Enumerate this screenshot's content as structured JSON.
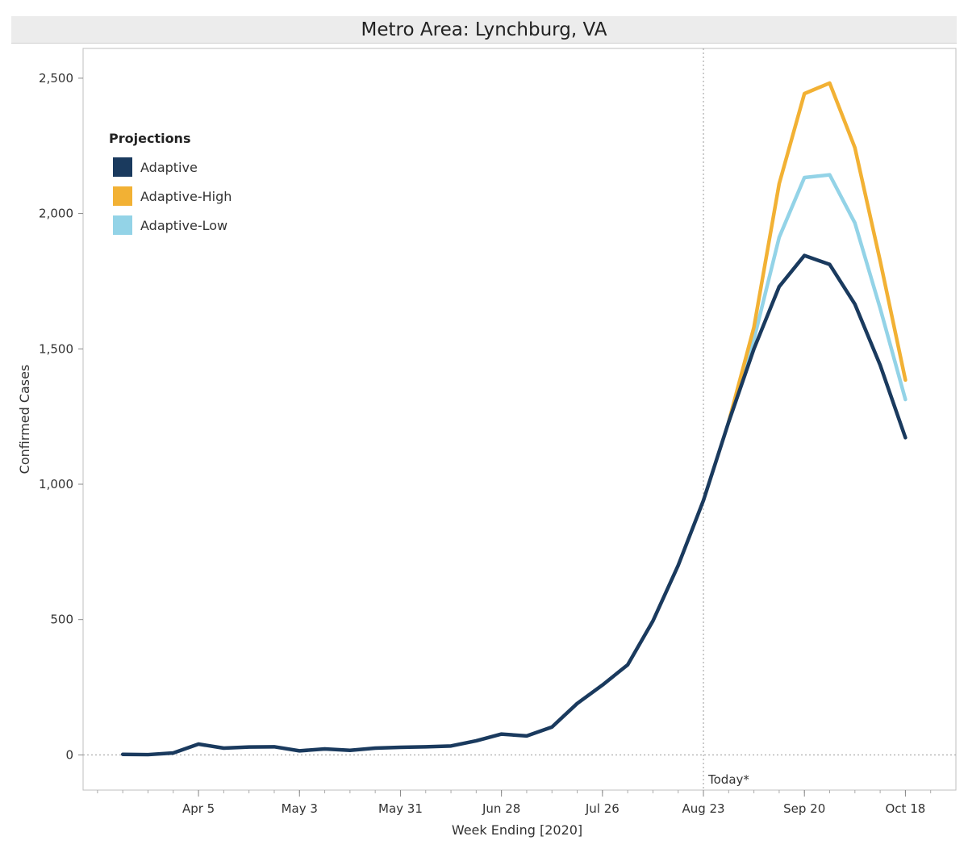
{
  "title": "Metro Area: Lynchburg, VA",
  "chart_data": {
    "type": "line",
    "title": "Metro Area: Lynchburg, VA",
    "xlabel": "Week Ending [2020]",
    "ylabel": "Confirmed Cases",
    "ylim": [
      -130,
      2610
    ],
    "xlim": [
      "2020-03-04",
      "2020-11-01"
    ],
    "x_ticks": [
      {
        "date": "2020-04-05",
        "label": "Apr 5"
      },
      {
        "date": "2020-05-03",
        "label": "May 3"
      },
      {
        "date": "2020-05-31",
        "label": "May 31"
      },
      {
        "date": "2020-06-28",
        "label": "Jun 28"
      },
      {
        "date": "2020-07-26",
        "label": "Jul 26"
      },
      {
        "date": "2020-08-23",
        "label": "Aug 23"
      },
      {
        "date": "2020-09-20",
        "label": "Sep 20"
      },
      {
        "date": "2020-10-18",
        "label": "Oct 18"
      }
    ],
    "y_ticks": [
      0,
      500,
      1000,
      1500,
      2000,
      2500
    ],
    "y_tick_labels": [
      "0",
      "500",
      "1,000",
      "1,500",
      "2,000",
      "2,500"
    ],
    "today_marker": {
      "date": "2020-08-23",
      "label": "Today*"
    },
    "zero_line": true,
    "legend": {
      "title": "Projections",
      "position": "top-left"
    },
    "series": [
      {
        "name": "Adaptive",
        "color": "#1a3a5e",
        "points": [
          [
            "2020-03-15",
            2
          ],
          [
            "2020-03-22",
            1
          ],
          [
            "2020-03-29",
            7
          ],
          [
            "2020-04-05",
            40
          ],
          [
            "2020-04-12",
            25
          ],
          [
            "2020-04-19",
            29
          ],
          [
            "2020-04-26",
            30
          ],
          [
            "2020-05-03",
            15
          ],
          [
            "2020-05-10",
            22
          ],
          [
            "2020-05-17",
            17
          ],
          [
            "2020-05-24",
            25
          ],
          [
            "2020-05-31",
            28
          ],
          [
            "2020-06-07",
            30
          ],
          [
            "2020-06-14",
            33
          ],
          [
            "2020-06-21",
            52
          ],
          [
            "2020-06-28",
            77
          ],
          [
            "2020-07-05",
            70
          ],
          [
            "2020-07-12",
            103
          ],
          [
            "2020-07-19",
            190
          ],
          [
            "2020-07-26",
            258
          ],
          [
            "2020-08-02",
            333
          ],
          [
            "2020-08-09",
            495
          ],
          [
            "2020-08-16",
            700
          ],
          [
            "2020-08-23",
            940
          ],
          [
            "2020-08-30",
            1230
          ],
          [
            "2020-09-06",
            1500
          ],
          [
            "2020-09-13",
            1730
          ],
          [
            "2020-09-20",
            1845
          ],
          [
            "2020-09-27",
            1812
          ],
          [
            "2020-10-04",
            1665
          ],
          [
            "2020-10-11",
            1440
          ],
          [
            "2020-10-18",
            1172
          ]
        ]
      },
      {
        "name": "Adaptive-High",
        "color": "#f2b134",
        "points": [
          [
            "2020-08-30",
            1230
          ],
          [
            "2020-09-06",
            1580
          ],
          [
            "2020-09-13",
            2110
          ],
          [
            "2020-09-20",
            2443
          ],
          [
            "2020-09-27",
            2482
          ],
          [
            "2020-10-04",
            2243
          ],
          [
            "2020-10-11",
            1825
          ],
          [
            "2020-10-18",
            1385
          ]
        ]
      },
      {
        "name": "Adaptive-Low",
        "color": "#93d3e7",
        "points": [
          [
            "2020-08-30",
            1230
          ],
          [
            "2020-09-06",
            1535
          ],
          [
            "2020-09-13",
            1912
          ],
          [
            "2020-09-20",
            2133
          ],
          [
            "2020-09-27",
            2143
          ],
          [
            "2020-10-04",
            1965
          ],
          [
            "2020-10-11",
            1650
          ],
          [
            "2020-10-18",
            1313
          ]
        ]
      }
    ]
  }
}
